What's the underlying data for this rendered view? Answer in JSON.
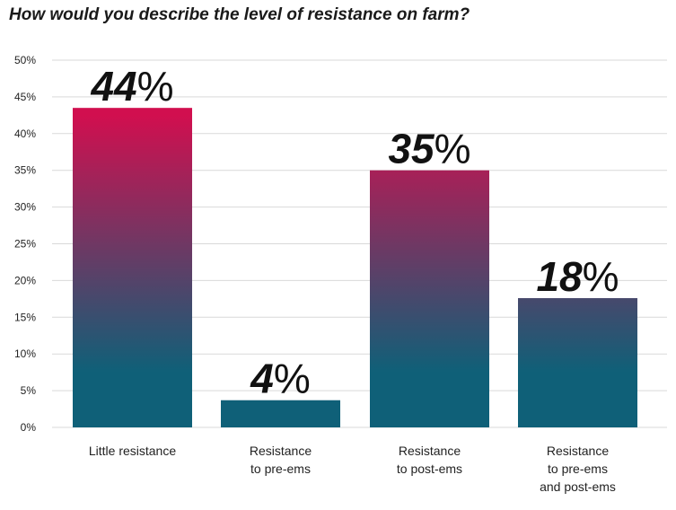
{
  "chart_data": {
    "type": "bar",
    "title": "How would you describe the level of resistance on farm?",
    "xlabel": "",
    "ylabel": "",
    "ylim": [
      0,
      50
    ],
    "yticks": [
      "0%",
      "5%",
      "10%",
      "15%",
      "20%",
      "25%",
      "30%",
      "35%",
      "40%",
      "45%",
      "50%"
    ],
    "grid": true,
    "categories": [
      [
        "Little resistance"
      ],
      [
        "Resistance",
        "to pre-ems"
      ],
      [
        "Resistance",
        "to post-ems"
      ],
      [
        "Resistance",
        "to pre-ems",
        "and post-ems"
      ]
    ],
    "values": [
      43.5,
      3.7,
      35,
      17.6
    ],
    "data_labels": [
      "44",
      "4",
      "35",
      "18"
    ],
    "percent_sign": "%",
    "colors": {
      "top": "#d10f4f",
      "bottom": "#0f6078",
      "grid": "#d9d9d9"
    }
  }
}
